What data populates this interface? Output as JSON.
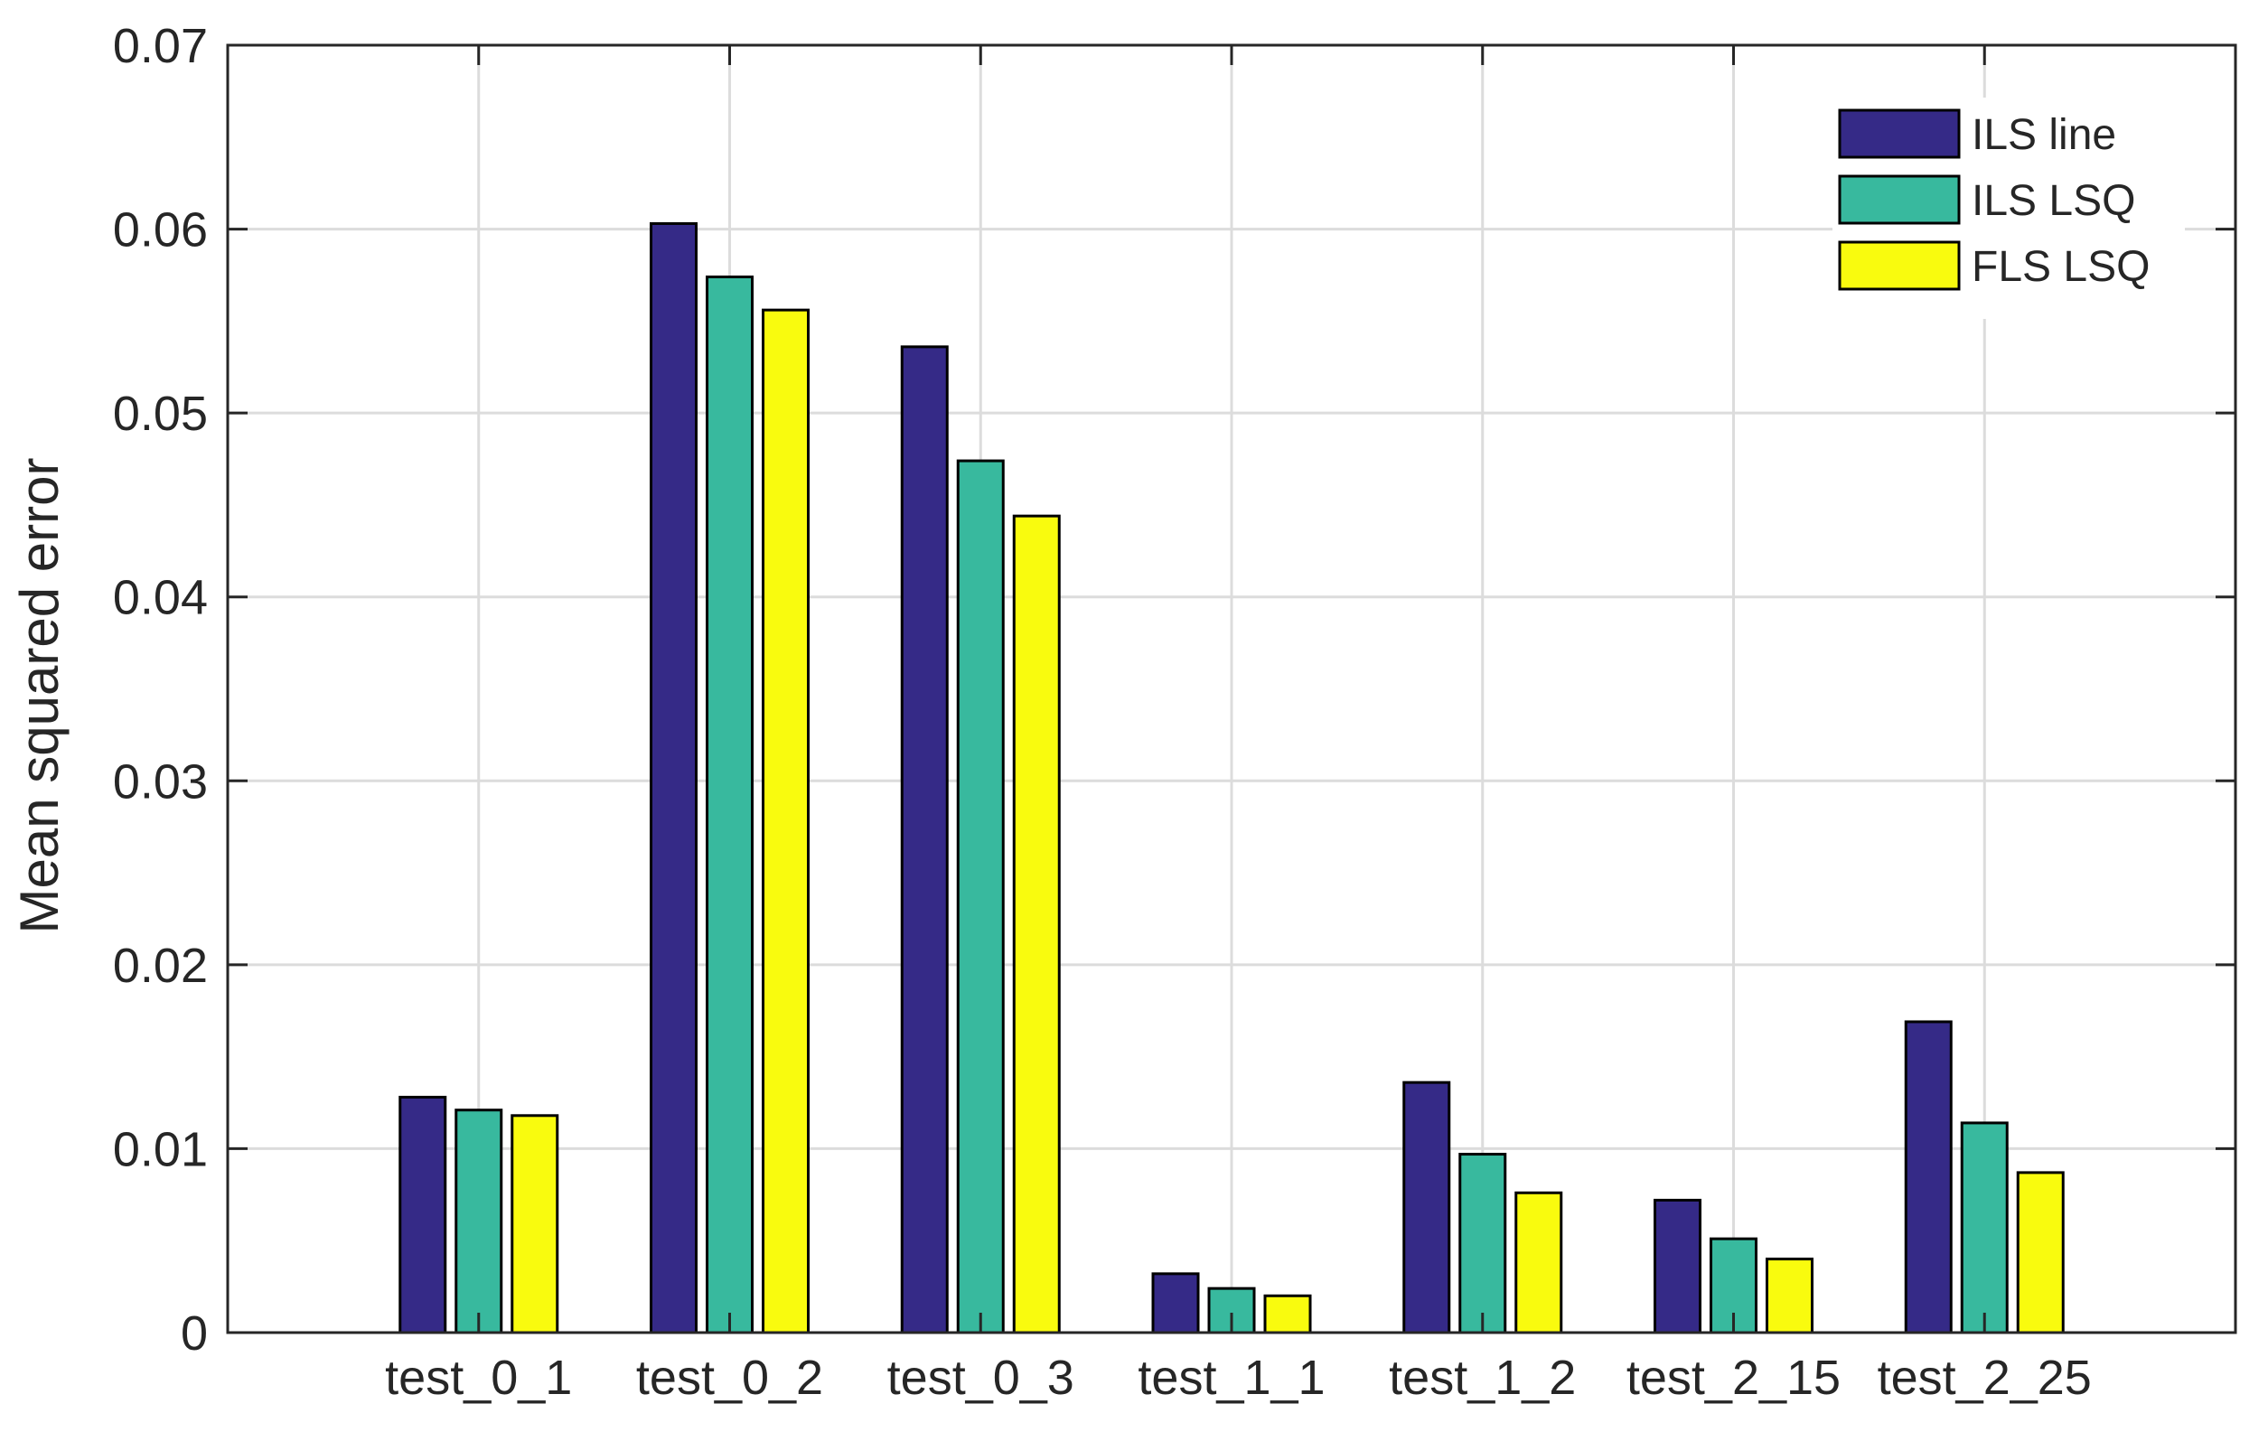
{
  "chart_data": {
    "type": "bar",
    "title": "",
    "xlabel": "",
    "ylabel": "Mean squared error",
    "ylim": [
      0,
      0.07
    ],
    "yticks": [
      0,
      0.01,
      0.02,
      0.03,
      0.04,
      0.05,
      0.06,
      0.07
    ],
    "ytick_labels": [
      "0",
      "0.01",
      "0.02",
      "0.03",
      "0.04",
      "0.05",
      "0.06",
      "0.07"
    ],
    "grid": true,
    "legend_position": "top-right",
    "categories": [
      "test_0_1",
      "test_0_2",
      "test_0_3",
      "test_1_1",
      "test_1_2",
      "test_2_15",
      "test_2_25"
    ],
    "series": [
      {
        "name": "ILS line",
        "color": "#352a87",
        "values": [
          0.0128,
          0.0603,
          0.0536,
          0.0032,
          0.0136,
          0.0072,
          0.0169
        ]
      },
      {
        "name": "ILS LSQ",
        "color": "#38b99e",
        "values": [
          0.0121,
          0.0574,
          0.0474,
          0.0024,
          0.0097,
          0.0051,
          0.0114
        ]
      },
      {
        "name": "FLS LSQ",
        "color": "#f9fb0e",
        "values": [
          0.0118,
          0.0556,
          0.0444,
          0.002,
          0.0076,
          0.004,
          0.0087
        ]
      }
    ]
  }
}
